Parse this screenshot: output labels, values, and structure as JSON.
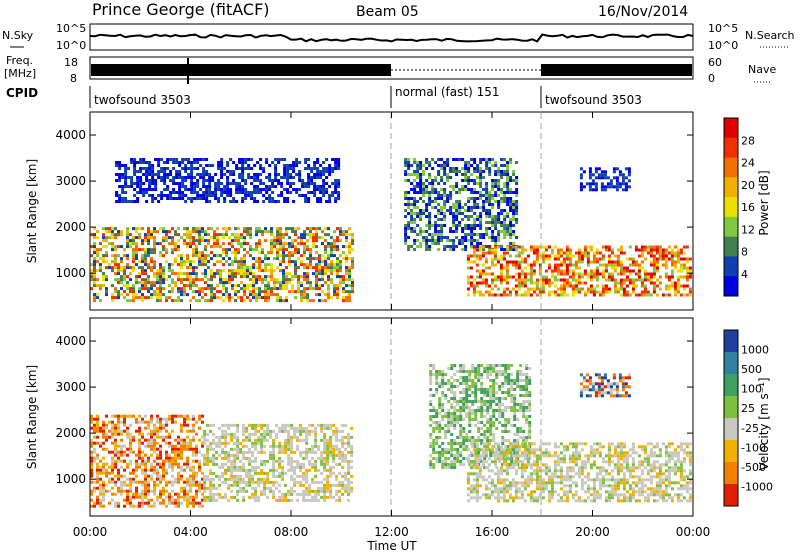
{
  "header": {
    "title": "Prince George (fitACF)",
    "beam": "Beam 05",
    "date": "16/Nov/2014"
  },
  "top_panels": {
    "nsky_label": "N.Sky",
    "nsky_ticks": [
      "10^5",
      "10^0"
    ],
    "nsearch_label": "N.Search",
    "nsearch_ticks": [
      "10^5",
      "10^0"
    ],
    "freq_label_1": "Freq.",
    "freq_label_2": "[MHz]",
    "freq_ticks": [
      "18",
      "8"
    ],
    "nave_label": "Nave",
    "nave_ticks": [
      "60",
      "0"
    ],
    "cpid_label": "CPID",
    "cpid_segments": [
      {
        "label": "twofsound 3503",
        "start_h": 0,
        "end_h": 12
      },
      {
        "label": "normal (fast) 151",
        "start_h": 12,
        "end_h": 18
      },
      {
        "label": "twofsound 3503",
        "start_h": 18,
        "end_h": 24
      }
    ]
  },
  "chart_data": [
    {
      "type": "heatmap",
      "quantity": "Power",
      "ylabel": "Slant Range [km]",
      "ylim": [
        200,
        4500
      ],
      "yticks": [
        1000,
        2000,
        3000,
        4000
      ],
      "xlim_h": [
        0,
        24
      ],
      "colorbar_label": "Power [dB]",
      "colorbar_ticks": [
        "28",
        "24",
        "20",
        "16",
        "12",
        "8",
        "4"
      ],
      "colorbar_colors": [
        "#e00000",
        "#f03000",
        "#f07000",
        "#f0b000",
        "#e8e000",
        "#80c840",
        "#408050",
        "#1040b0",
        "#0000e0"
      ],
      "mode_boundaries_h": [
        12,
        18
      ],
      "echo_regions": [
        {
          "t0": 0.0,
          "t1": 10.5,
          "r0": 400,
          "r1": 2000,
          "level": "medium-high"
        },
        {
          "t0": 1.0,
          "t1": 10.0,
          "r0": 2500,
          "r1": 3500,
          "level": "low"
        },
        {
          "t0": 12.5,
          "t1": 17.0,
          "r0": 1500,
          "r1": 3500,
          "level": "low-medium"
        },
        {
          "t0": 15.0,
          "t1": 24.0,
          "r0": 500,
          "r1": 1600,
          "level": "high"
        },
        {
          "t0": 19.5,
          "t1": 21.5,
          "r0": 2800,
          "r1": 3300,
          "level": "low"
        }
      ]
    },
    {
      "type": "heatmap",
      "quantity": "Velocity",
      "ylabel": "Slant Range [km]",
      "ylim": [
        200,
        4500
      ],
      "yticks": [
        1000,
        2000,
        3000,
        4000
      ],
      "xlim_h": [
        0,
        24
      ],
      "xticks": [
        "00:00",
        "04:00",
        "08:00",
        "12:00",
        "16:00",
        "20:00",
        "00:00"
      ],
      "xlabel": "Time UT",
      "colorbar_label": "Velocity [m s⁻¹]",
      "colorbar_ticks": [
        "1000",
        "500",
        "100",
        "25",
        "-25",
        "-100",
        "-500",
        "-1000"
      ],
      "colorbar_colors": [
        "#2040a0",
        "#3080a0",
        "#40a060",
        "#80c040",
        "#c8c8c0",
        "#f0b000",
        "#f08000",
        "#e02000"
      ],
      "mode_boundaries_h": [
        12,
        18
      ],
      "echo_regions": [
        {
          "t0": 0.0,
          "t1": 4.5,
          "r0": 400,
          "r1": 2400,
          "level": "toward-negative"
        },
        {
          "t0": 4.5,
          "t1": 10.5,
          "r0": 500,
          "r1": 2200,
          "level": "near-zero"
        },
        {
          "t0": 13.5,
          "t1": 17.5,
          "r0": 1200,
          "r1": 3500,
          "level": "positive"
        },
        {
          "t0": 15.0,
          "t1": 24.0,
          "r0": 500,
          "r1": 1800,
          "level": "near-zero"
        },
        {
          "t0": 19.5,
          "t1": 21.5,
          "r0": 2800,
          "r1": 3300,
          "level": "mixed"
        }
      ]
    }
  ]
}
